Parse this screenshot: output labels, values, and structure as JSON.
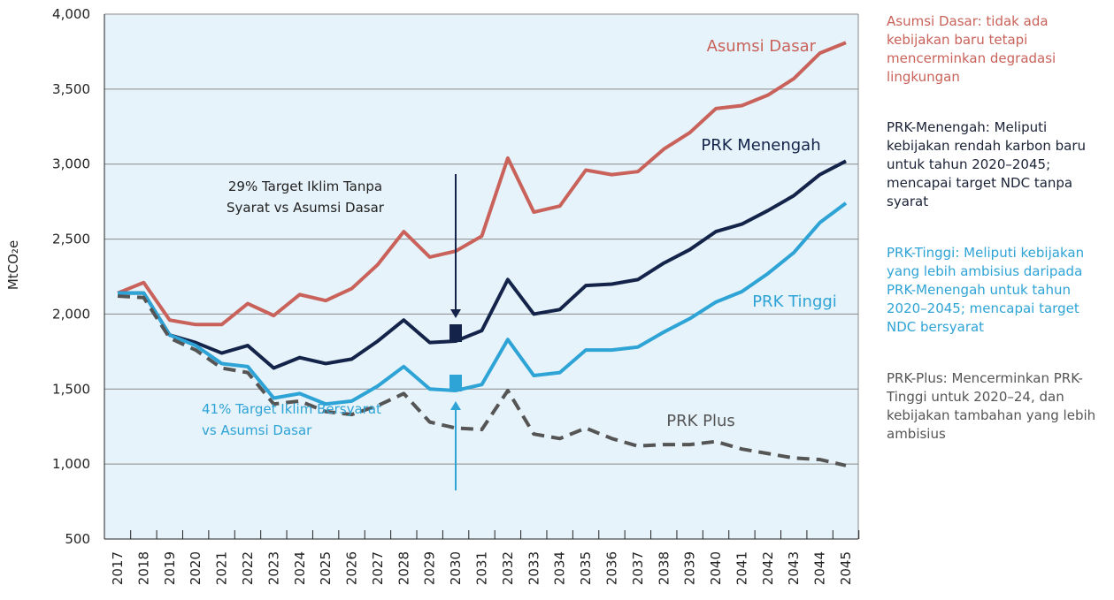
{
  "chart_data": {
    "type": "line",
    "y_label": "MtCO₂e",
    "categories": [
      "2017",
      "2018",
      "2019",
      "2020",
      "2021",
      "2022",
      "2023",
      "2024",
      "2025",
      "2026",
      "2027",
      "2028",
      "2029",
      "2030",
      "2031",
      "2032",
      "2033",
      "2034",
      "2035",
      "2036",
      "2037",
      "2038",
      "2039",
      "2040",
      "2041",
      "2042",
      "2043",
      "2044",
      "2045"
    ],
    "ylim": [
      500,
      4000
    ],
    "yticks": [
      500,
      {
        "value": 1000,
        "label": "1,000"
      },
      {
        "value": 1500,
        "label": "1,500"
      },
      {
        "value": 2000,
        "label": "2,000"
      },
      {
        "value": 2500,
        "label": "2,500"
      },
      {
        "value": 3000,
        "label": "3,000"
      },
      {
        "value": 3500,
        "label": "3,500"
      },
      {
        "value": 4000,
        "label": "4,000"
      }
    ],
    "grid": true,
    "series": [
      {
        "name": "Asumsi Dasar",
        "color": "#c9625a",
        "dashed": false,
        "values": [
          2140,
          2210,
          1960,
          1930,
          1930,
          2070,
          1990,
          2130,
          2090,
          2170,
          2330,
          2550,
          2380,
          2420,
          2520,
          3040,
          2680,
          2720,
          2960,
          2930,
          2950,
          3100,
          3210,
          3370,
          3390,
          3460,
          3570,
          3740,
          3810
        ]
      },
      {
        "name": "PRK Menengah",
        "color": "#14234a",
        "dashed": false,
        "values": [
          2140,
          2140,
          1860,
          1810,
          1740,
          1790,
          1640,
          1710,
          1670,
          1700,
          1820,
          1960,
          1810,
          1820,
          1890,
          2230,
          2000,
          2030,
          2190,
          2200,
          2230,
          2340,
          2430,
          2550,
          2600,
          2690,
          2790,
          2930,
          3020
        ]
      },
      {
        "name": "PRK Tinggi",
        "color": "#2ea3d6",
        "dashed": false,
        "values": [
          2140,
          2140,
          1860,
          1790,
          1670,
          1650,
          1440,
          1470,
          1400,
          1420,
          1520,
          1650,
          1500,
          1490,
          1530,
          1830,
          1590,
          1610,
          1760,
          1760,
          1780,
          1880,
          1970,
          2080,
          2150,
          2270,
          2410,
          2610,
          2740
        ]
      },
      {
        "name": "PRK Plus",
        "color": "#555555",
        "dashed": true,
        "values": [
          2120,
          2110,
          1840,
          1760,
          1640,
          1610,
          1400,
          1420,
          1350,
          1330,
          1390,
          1470,
          1280,
          1240,
          1230,
          1490,
          1200,
          1170,
          1240,
          1170,
          1120,
          1130,
          1130,
          1150,
          1100,
          1070,
          1040,
          1030,
          990
        ]
      }
    ],
    "annotations": [
      [
        "29% Target Iklim Tanpa",
        "Syarat vs Asumsi Dasar"
      ],
      [
        "41% Target Iklim Bersyarat",
        "vs Asumsi Dasar"
      ]
    ],
    "notes": [
      "Asumsi Dasar: tidak ada kebijakan baru tetapi mencerminkan degradasi lingkungan",
      "PRK-Menengah: Meliputi kebijakan rendah karbon baru untuk tahun 2020–2045; mencapai target NDC tanpa syarat",
      "PRK-Tinggi: Meliputi kebijakan yang lebih ambisius daripada PRK-Menengah untuk tahun 2020–2045; mencapai target NDC bersyarat",
      "PRK-Plus: Mencerminkan PRK-Tinggi untuk 2020–24, dan kebijakan tambahan yang lebih ambisius"
    ]
  }
}
